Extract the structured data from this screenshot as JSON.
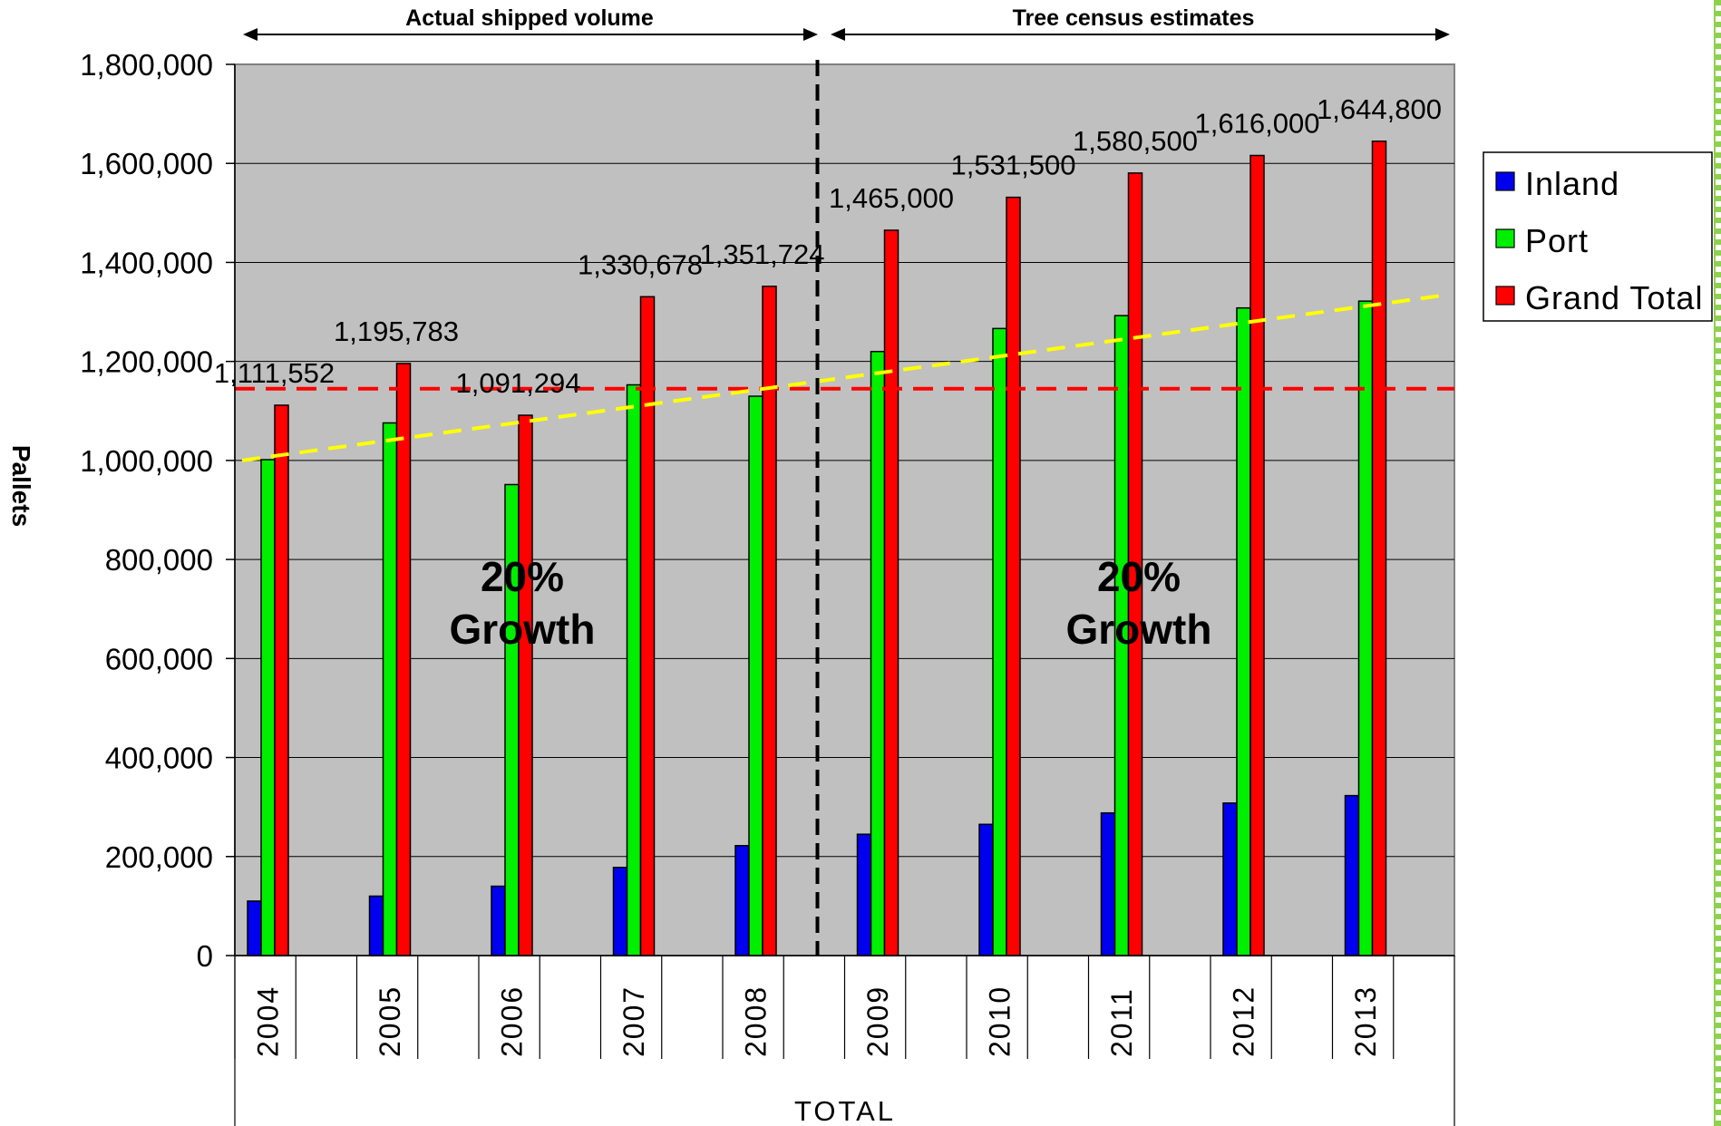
{
  "chart_data": {
    "type": "bar",
    "categories": [
      "2004",
      "2005",
      "2006",
      "2007",
      "2008",
      "2009",
      "2010",
      "2011",
      "2012",
      "2013"
    ],
    "series": [
      {
        "name": "Inland",
        "color": "#0000ee",
        "values": [
          110000,
          120000,
          140000,
          178000,
          222000,
          245000,
          265000,
          288000,
          308000,
          323000
        ]
      },
      {
        "name": "Port",
        "color": "#00ee00",
        "values": [
          1001552,
          1075783,
          951294,
          1152678,
          1129724,
          1220000,
          1266500,
          1292500,
          1308000,
          1321800
        ]
      },
      {
        "name": "Grand Total",
        "color": "#ff0000",
        "values": [
          1111552,
          1195783,
          1091294,
          1330678,
          1351724,
          1465000,
          1531500,
          1580500,
          1616000,
          1644800
        ]
      }
    ],
    "data_labels": [
      "1,111,552",
      "1,195,783",
      "1,091,294",
      "1,330,678",
      "1,351,724",
      "1,465,000",
      "1,531,500",
      "1,580,500",
      "1,616,000",
      "1,644,800"
    ],
    "ylim": [
      0,
      1800000
    ],
    "y_ticks": [
      0,
      200000,
      400000,
      600000,
      800000,
      1000000,
      1200000,
      1400000,
      1600000,
      1800000
    ],
    "y_tick_labels": [
      "0",
      "200,000",
      "400,000",
      "600,000",
      "800,000",
      "1,000,000",
      "1,200,000",
      "1,400,000",
      "1,600,000",
      "1,800,000"
    ],
    "ylabel": "Pallets",
    "xlabel": "TOTAL",
    "grid": true,
    "legend_position": "right",
    "reference_line": {
      "value": 1145000,
      "color": "#ff0000",
      "style": "dashed"
    },
    "trend_line": {
      "start": 1000000,
      "end": 1335000,
      "color": "#ffff00",
      "style": "dashed"
    },
    "divider_after_category": "2008",
    "section_headers": [
      {
        "text": "Actual shipped volume",
        "from": "2004",
        "to": "2008"
      },
      {
        "text": "Tree census estimates",
        "from": "2009",
        "to": "2013"
      }
    ],
    "annotations": [
      {
        "line1": "20%",
        "line2": "Growth",
        "near": "2006"
      },
      {
        "line1": "20%",
        "line2": "Growth",
        "near": "2011"
      }
    ],
    "plot_background": "#c0c0c0"
  }
}
